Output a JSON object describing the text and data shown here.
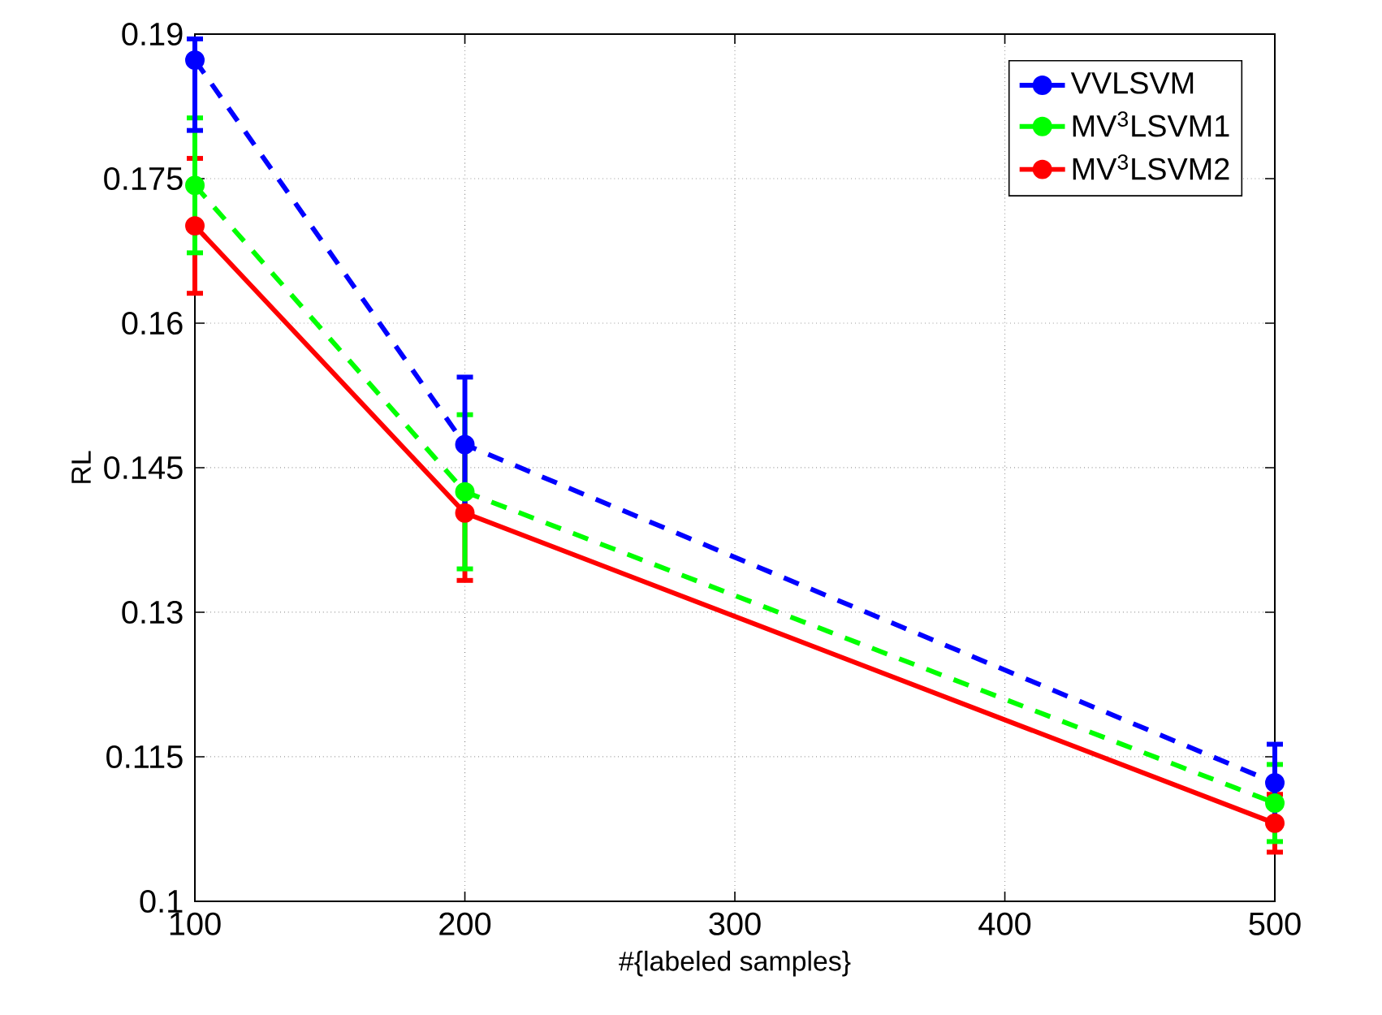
{
  "chart_data": {
    "type": "line",
    "xlabel": "#{labeled samples}",
    "ylabel": "RL",
    "x": [
      100,
      200,
      500
    ],
    "series": [
      {
        "name": "VVLSVM",
        "color": "#0000ff",
        "line_style": "dashed",
        "values": [
          0.1873,
          0.1474,
          0.1123
        ],
        "errors": [
          [
            0.18,
            0.1895
          ],
          0.007,
          0.004
        ]
      },
      {
        "name": "MV$^{3}$LSVM1",
        "color": "#00ff00",
        "line_style": "dashed",
        "values": [
          0.1743,
          0.1425,
          0.1102
        ],
        "errors": [
          0.007,
          0.008,
          0.004
        ]
      },
      {
        "name": "MV$^{3}$LSVM2",
        "color": "#ff0000",
        "line_style": "solid",
        "values": [
          0.1701,
          0.1403,
          0.1081
        ],
        "errors": [
          0.007,
          0.007,
          0.003
        ]
      }
    ],
    "xlim": [
      100,
      500
    ],
    "ylim": [
      0.1,
      0.19
    ],
    "xticks": [
      100,
      200,
      300,
      400,
      500
    ],
    "yticks": [
      0.1,
      0.115,
      0.13,
      0.145,
      0.16,
      0.175,
      0.19
    ],
    "grid": true,
    "legend": "top right",
    "marker": "circle"
  }
}
